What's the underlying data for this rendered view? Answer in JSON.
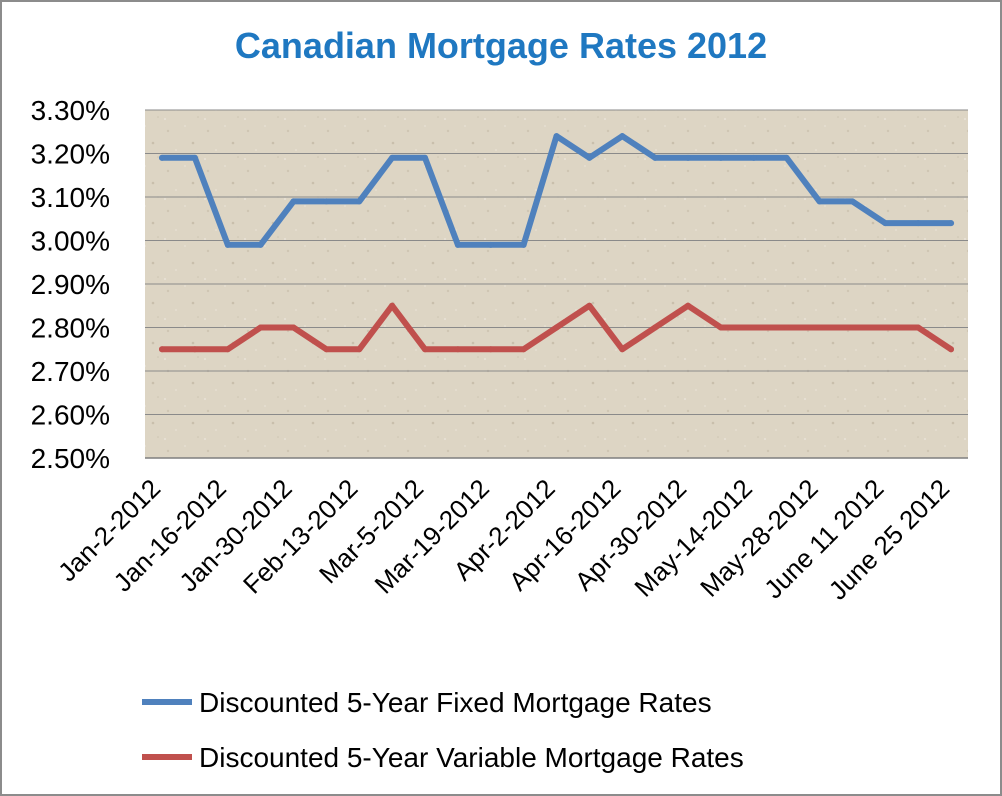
{
  "chart_data": {
    "type": "line",
    "title": "Canadian Mortgage Rates 2012",
    "xlabel": "",
    "ylabel": "",
    "ylim": [
      2.5,
      3.3
    ],
    "yticks": [
      "2.50%",
      "2.60%",
      "2.70%",
      "2.80%",
      "2.90%",
      "3.00%",
      "3.10%",
      "3.20%",
      "3.30%"
    ],
    "grid": true,
    "legend_placement": "bottom",
    "x_tick_labels": [
      "Jan-2-2012",
      "Jan-16-2012",
      "Jan-30-2012",
      "Feb-13-2012",
      "Mar-5-2012",
      "Mar-19-2012",
      "Apr-2-2012",
      "Apr-16-2012",
      "Apr-30-2012",
      "May-14-2012",
      "May-28-2012",
      "June 11 2012",
      "June 25 2012"
    ],
    "series": [
      {
        "name": "Discounted 5-Year Fixed Mortgage Rates",
        "color": "#4f81bd",
        "values": [
          3.19,
          3.19,
          2.99,
          2.99,
          3.09,
          3.09,
          3.09,
          3.19,
          3.19,
          2.99,
          2.99,
          2.99,
          3.24,
          3.19,
          3.24,
          3.19,
          3.19,
          3.19,
          3.19,
          3.19,
          3.09,
          3.09,
          3.04,
          3.04,
          3.04
        ]
      },
      {
        "name": "Discounted 5-Year Variable Mortgage Rates",
        "color": "#c0504d",
        "values": [
          2.75,
          2.75,
          2.75,
          2.8,
          2.8,
          2.75,
          2.75,
          2.85,
          2.75,
          2.75,
          2.75,
          2.75,
          2.8,
          2.85,
          2.75,
          2.8,
          2.85,
          2.8,
          2.8,
          2.8,
          2.8,
          2.8,
          2.8,
          2.8,
          2.75
        ]
      }
    ]
  }
}
